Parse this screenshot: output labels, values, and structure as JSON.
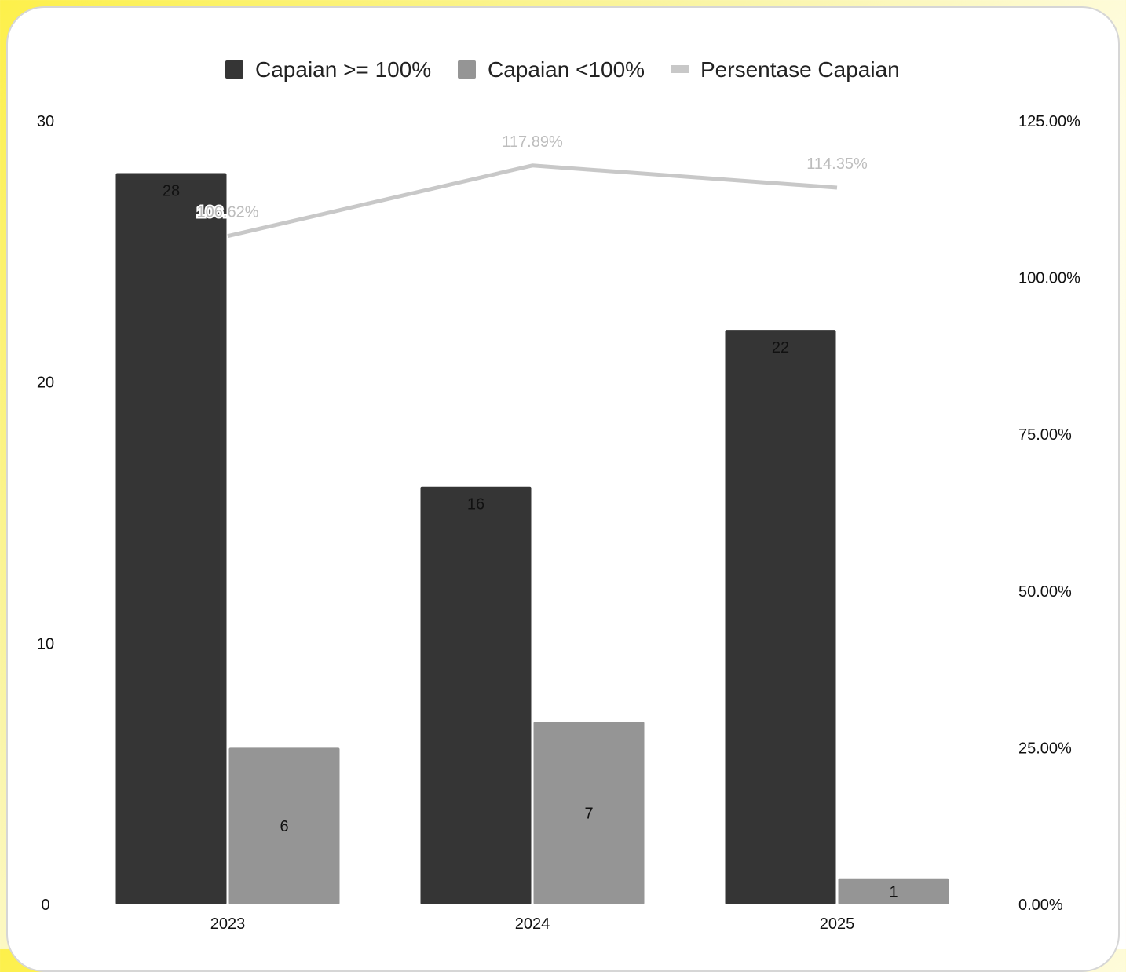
{
  "chart_data": {
    "type": "bar",
    "categories": [
      "2023",
      "2024",
      "2025"
    ],
    "series": [
      {
        "name": "Capaian >= 100%",
        "kind": "bar",
        "axis": "left",
        "color": "#353535",
        "values": [
          28,
          16,
          22
        ]
      },
      {
        "name": "Capaian <100%",
        "kind": "bar",
        "axis": "left",
        "color": "#959595",
        "values": [
          6,
          7,
          1
        ]
      },
      {
        "name": "Persentase Capaian",
        "kind": "line",
        "axis": "right",
        "color": "#c8c8c8",
        "values": [
          106.62,
          117.89,
          114.35
        ],
        "labels": [
          "106.62%",
          "117.89%",
          "114.35%"
        ]
      }
    ],
    "y_left": {
      "ylim": [
        0,
        30
      ],
      "ticks": [
        "0",
        "10",
        "20",
        "30"
      ],
      "tick_values": [
        0,
        10,
        20,
        30
      ]
    },
    "y_right": {
      "ylim": [
        0,
        125
      ],
      "ticks": [
        "0.00%",
        "25.00%",
        "50.00%",
        "75.00%",
        "100.00%",
        "125.00%"
      ],
      "tick_values": [
        0,
        25,
        50,
        75,
        100,
        125
      ]
    },
    "legend_position": "top-center",
    "grid": false
  }
}
